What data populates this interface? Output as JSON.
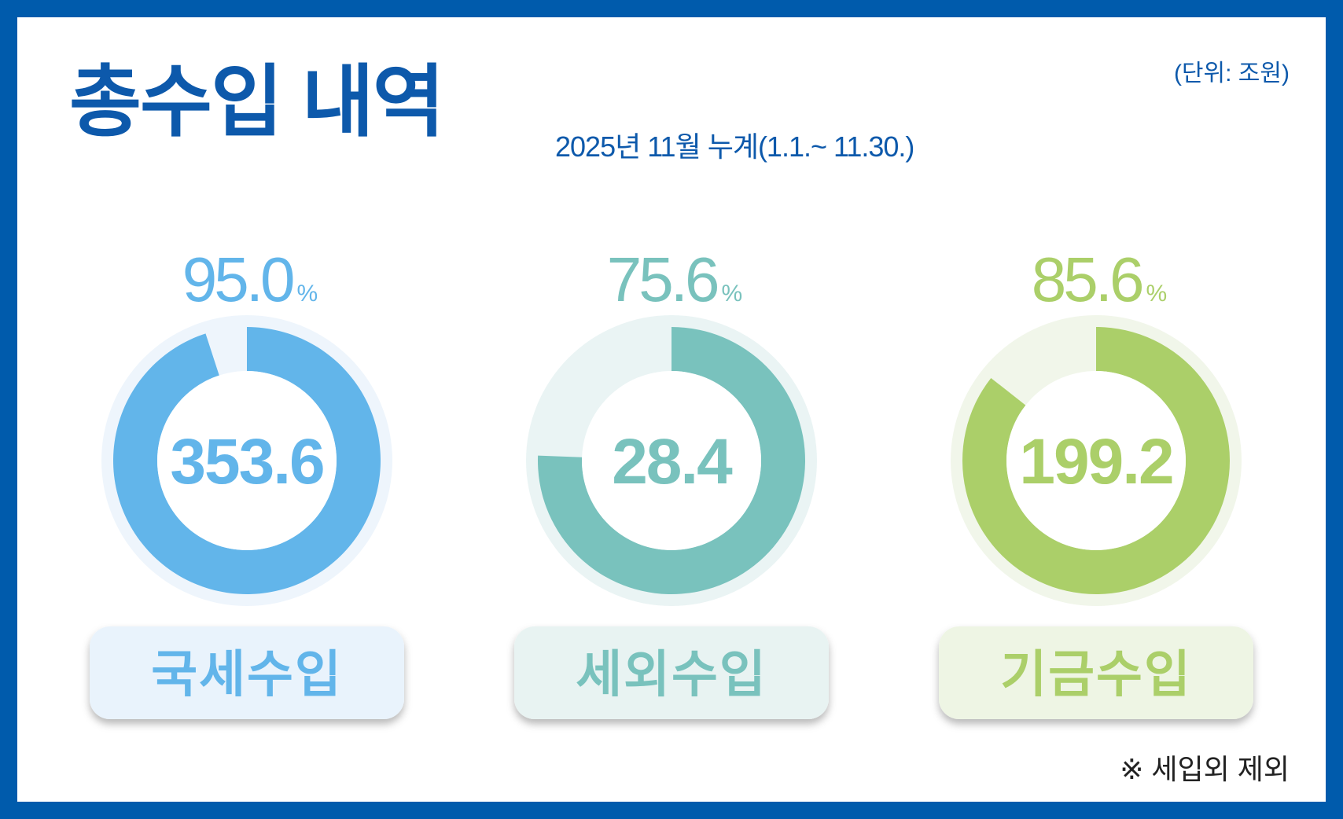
{
  "header": {
    "title": "총수입 내역",
    "subtitle": "2025년 11월 누계(1.1.~ 11.30.)",
    "unit": "(단위: 조원)"
  },
  "footnote": "※ 세입외 제외",
  "chart_data": {
    "type": "pie",
    "style": "donut",
    "categories": [
      "국세수입",
      "세외수입",
      "기금수입"
    ],
    "values": [
      353.6,
      28.4,
      199.2
    ],
    "percents": [
      95.0,
      75.6,
      85.6
    ],
    "percent_labels": [
      "95.0",
      "75.6",
      "85.6"
    ],
    "value_labels": [
      "353.6",
      "28.4",
      "199.2"
    ],
    "percent_unit": "%",
    "colors": [
      "#62b5ea",
      "#79c2bd",
      "#abcf69"
    ],
    "track_colors": [
      "#eef5fc",
      "#eaf4f4",
      "#f1f6ea"
    ],
    "label_bg_colors": [
      "#e9f3fc",
      "#e8f3f2",
      "#eef5e4"
    ]
  }
}
